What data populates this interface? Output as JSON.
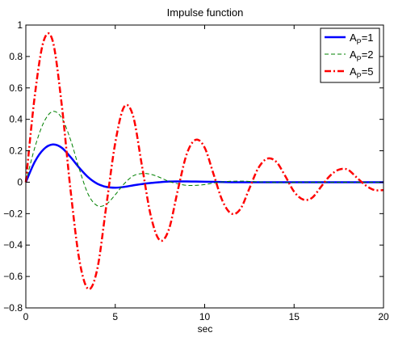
{
  "chart_data": {
    "type": "line",
    "title": "Impulse function",
    "xlabel": "sec",
    "ylabel": "",
    "xlim": [
      0,
      20
    ],
    "ylim": [
      -0.8,
      1
    ],
    "x_ticks": [
      0,
      5,
      10,
      15,
      20
    ],
    "y_ticks": [
      -0.8,
      -0.6,
      -0.4,
      -0.2,
      0,
      0.2,
      0.4,
      0.6,
      0.8,
      1
    ],
    "x_tick_labels": [
      "0",
      "5",
      "10",
      "15",
      "20"
    ],
    "y_tick_labels": [
      "−0.8",
      "−0.6",
      "−0.4",
      "−0.2",
      "0",
      "0.2",
      "0.4",
      "0.6",
      "0.8",
      "1"
    ],
    "grid": false,
    "legend": "top-right",
    "x": [
      0,
      0.5,
      1,
      1.5,
      2,
      2.5,
      3,
      3.5,
      4,
      4.5,
      5,
      5.5,
      6,
      6.5,
      7,
      7.5,
      8,
      8.5,
      9,
      9.5,
      10,
      10.5,
      11,
      11.5,
      12,
      12.5,
      13,
      13.5,
      14,
      14.5,
      15,
      15.5,
      16,
      16.5,
      17,
      17.5,
      18,
      18.5,
      19,
      19.5,
      20
    ],
    "series": [
      {
        "name_main": "A",
        "name_sub": "P",
        "name_tail": "=1",
        "color": "#0000ff",
        "style": "solid",
        "values": [
          0,
          0.13,
          0.21,
          0.24,
          0.22,
          0.16,
          0.09,
          0.03,
          -0.01,
          -0.03,
          -0.035,
          -0.03,
          -0.02,
          -0.012,
          -0.005,
          0,
          0.004,
          0.005,
          0.005,
          0.004,
          0.003,
          0.002,
          0.001,
          0,
          0,
          0,
          0,
          0,
          0,
          0,
          0,
          0,
          0,
          0,
          0,
          0,
          0,
          0,
          0,
          0,
          0
        ]
      },
      {
        "name_main": "A",
        "name_sub": "P",
        "name_tail": "=2",
        "color": "#008000",
        "style": "dashed",
        "values": [
          0,
          0.22,
          0.38,
          0.45,
          0.41,
          0.27,
          0.08,
          -0.08,
          -0.15,
          -0.14,
          -0.08,
          -0.01,
          0.04,
          0.055,
          0.05,
          0.03,
          0.005,
          -0.01,
          -0.02,
          -0.02,
          -0.015,
          -0.005,
          0.002,
          0.006,
          0.007,
          0.005,
          0.002,
          0,
          -0.002,
          -0.002,
          -0.001,
          0,
          0,
          0,
          0,
          0,
          0,
          0,
          0,
          0,
          0
        ]
      },
      {
        "name_main": "A",
        "name_sub": "P",
        "name_tail": "=5",
        "color": "#ff0000",
        "style": "dashdot",
        "values": [
          0,
          0.55,
          0.9,
          0.9,
          0.5,
          -0.05,
          -0.5,
          -0.68,
          -0.55,
          -0.15,
          0.25,
          0.48,
          0.42,
          0.1,
          -0.22,
          -0.37,
          -0.3,
          -0.05,
          0.18,
          0.27,
          0.22,
          0.05,
          -0.12,
          -0.2,
          -0.17,
          -0.04,
          0.09,
          0.15,
          0.13,
          0.04,
          -0.06,
          -0.11,
          -0.1,
          -0.03,
          0.04,
          0.08,
          0.08,
          0.03,
          -0.02,
          -0.05,
          -0.05
        ]
      }
    ]
  }
}
